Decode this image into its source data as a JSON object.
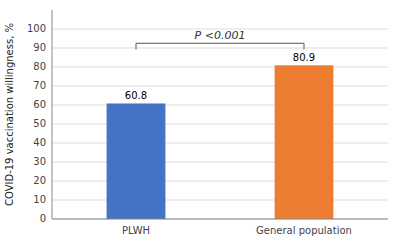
{
  "chart_data": {
    "type": "bar",
    "ylabel": "COVID-19 vaccination willingness, %",
    "categories": [
      "PLWH",
      "General population"
    ],
    "values": [
      60.8,
      80.9
    ],
    "colors": [
      "#4472C4",
      "#ED7D31"
    ],
    "ylim": [
      0,
      110
    ],
    "yticks": [
      0,
      10,
      20,
      30,
      40,
      50,
      60,
      70,
      80,
      90,
      100
    ],
    "grid": true,
    "data_labels": true,
    "annotation": "P <0.001"
  }
}
